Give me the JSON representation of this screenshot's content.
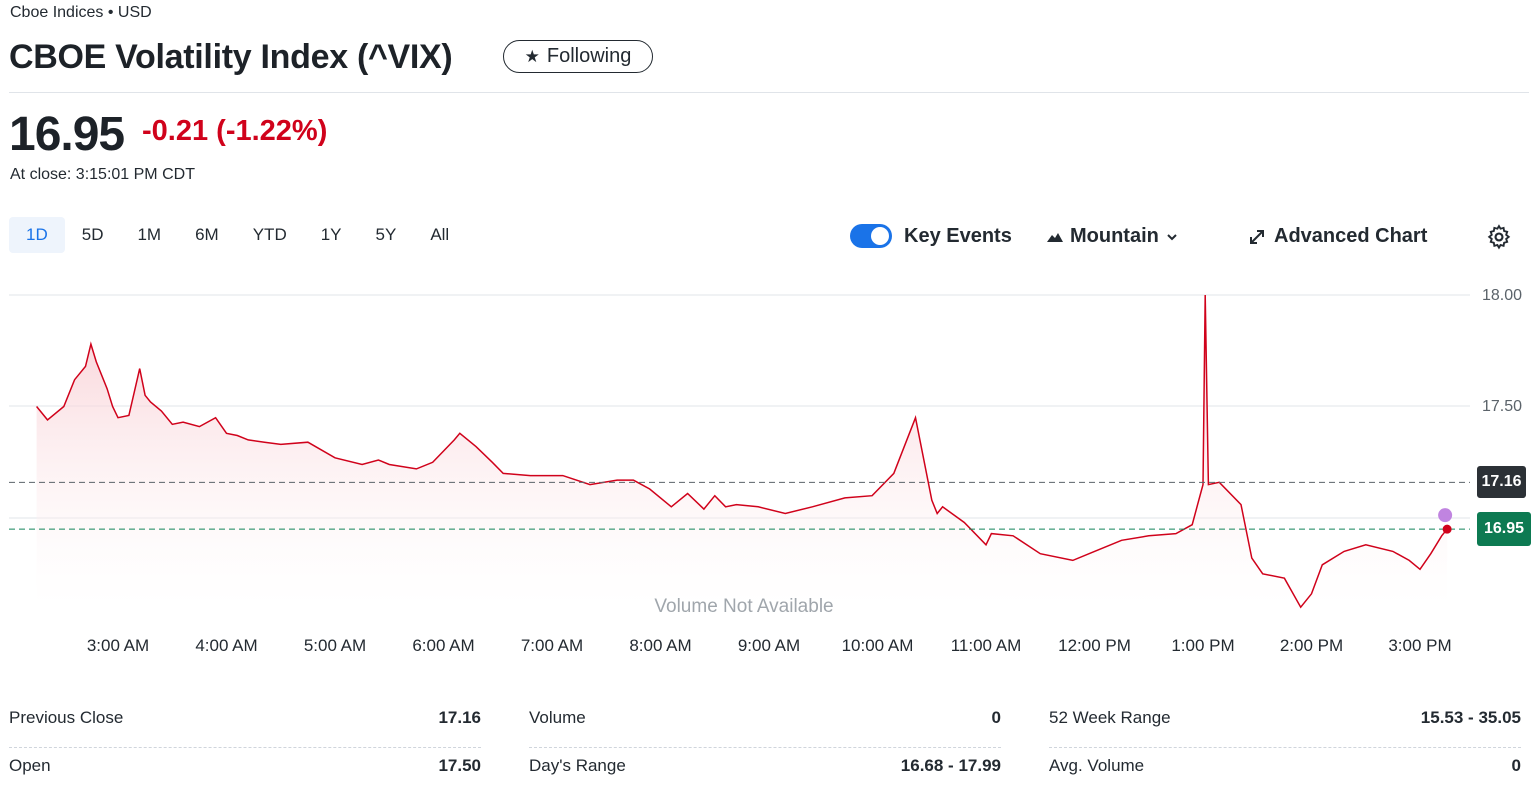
{
  "header": {
    "exchange": "Cboe Indices • USD",
    "title": "CBOE Volatility Index (^VIX)",
    "follow_label": "Following",
    "follow_icon": "star-icon"
  },
  "quote": {
    "price": "16.95",
    "change": "-0.21 (-1.22%)",
    "close_time": "At close: 3:15:01 PM CDT",
    "change_color": "#d0021b"
  },
  "toolbar": {
    "ranges": [
      "1D",
      "5D",
      "1M",
      "6M",
      "YTD",
      "1Y",
      "5Y",
      "All"
    ],
    "active_range": "1D",
    "key_events_label": "Key Events",
    "key_events_on": true,
    "chart_type_label": "Mountain",
    "advanced_label": "Advanced Chart"
  },
  "chart_data": {
    "type": "area",
    "y_ticks": [
      "18.00",
      "17.50"
    ],
    "ylim": [
      16.5,
      18.0
    ],
    "x_ticks": [
      "3:00 AM",
      "4:00 AM",
      "5:00 AM",
      "6:00 AM",
      "7:00 AM",
      "8:00 AM",
      "9:00 AM",
      "10:00 AM",
      "11:00 AM",
      "12:00 PM",
      "1:00 PM",
      "2:00 PM",
      "3:00 PM"
    ],
    "previous_close": 17.16,
    "previous_close_label": "17.16",
    "last": 16.95,
    "last_label": "16.95",
    "volume_note": "Volume Not Available",
    "line_color": "#d0021b",
    "series": [
      {
        "x_hours": [
          2.25,
          2.35,
          2.5,
          2.6,
          2.7,
          2.75,
          2.8,
          2.9,
          2.95,
          3.0,
          3.1,
          3.2,
          3.25,
          3.3,
          3.4,
          3.5,
          3.6,
          3.75,
          3.9,
          4.0,
          4.1,
          4.2,
          4.35,
          4.5,
          4.75,
          5.0,
          5.25,
          5.4,
          5.5,
          5.75,
          5.9,
          6.1,
          6.15,
          6.3,
          6.45,
          6.55,
          6.8,
          7.1,
          7.35,
          7.6,
          7.75,
          7.9,
          8.1,
          8.25,
          8.4,
          8.5,
          8.6,
          8.7,
          8.9,
          9.15,
          9.4,
          9.7,
          9.95,
          10.15,
          10.35,
          10.5,
          10.55,
          10.6,
          10.8,
          11.0,
          11.05,
          11.25,
          11.5,
          11.8,
          12.0,
          12.25,
          12.5,
          12.75,
          12.9,
          12.95,
          13.0,
          13.02,
          13.05,
          13.15,
          13.35,
          13.45,
          13.55,
          13.75,
          13.9,
          14.0,
          14.1,
          14.3,
          14.5,
          14.75,
          14.9,
          15.0,
          15.1,
          15.2,
          15.25
        ],
        "values": [
          17.5,
          17.44,
          17.5,
          17.62,
          17.68,
          17.78,
          17.7,
          17.58,
          17.5,
          17.45,
          17.46,
          17.67,
          17.55,
          17.52,
          17.48,
          17.42,
          17.43,
          17.41,
          17.45,
          17.38,
          17.37,
          17.35,
          17.34,
          17.33,
          17.34,
          17.27,
          17.24,
          17.26,
          17.24,
          17.22,
          17.25,
          17.35,
          17.38,
          17.32,
          17.25,
          17.2,
          17.19,
          17.19,
          17.15,
          17.17,
          17.17,
          17.13,
          17.05,
          17.11,
          17.04,
          17.1,
          17.05,
          17.06,
          17.05,
          17.02,
          17.05,
          17.09,
          17.1,
          17.2,
          17.45,
          17.08,
          17.02,
          17.05,
          16.98,
          16.88,
          16.93,
          16.92,
          16.84,
          16.81,
          16.85,
          16.9,
          16.92,
          16.93,
          16.97,
          17.06,
          17.15,
          18.0,
          17.15,
          17.16,
          17.06,
          16.82,
          16.75,
          16.73,
          16.6,
          16.66,
          16.79,
          16.85,
          16.88,
          16.85,
          16.81,
          16.77,
          16.84,
          16.92,
          16.95
        ]
      }
    ]
  },
  "stats": {
    "col1": [
      {
        "k": "Previous Close",
        "v": "17.16"
      },
      {
        "k": "Open",
        "v": "17.50"
      }
    ],
    "col2": [
      {
        "k": "Volume",
        "v": "0"
      },
      {
        "k": "Day's Range",
        "v": "16.68 - 17.99"
      }
    ],
    "col3": [
      {
        "k": "52 Week Range",
        "v": "15.53 - 35.05"
      },
      {
        "k": "Avg. Volume",
        "v": "0"
      }
    ]
  }
}
